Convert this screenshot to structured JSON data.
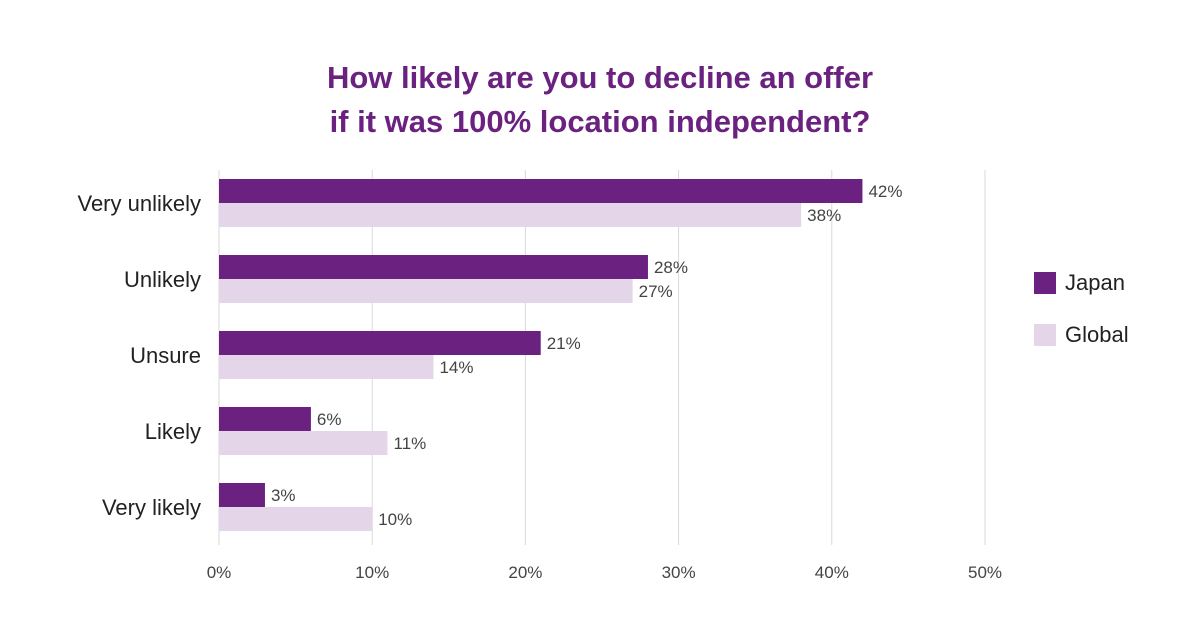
{
  "title_line1": "How likely are you to decline an offer",
  "title_line2": "if it was 100% location independent?",
  "chart_data": {
    "type": "bar",
    "orientation": "horizontal",
    "categories": [
      "Very unlikely",
      "Unlikely",
      "Unsure",
      "Likely",
      "Very likely"
    ],
    "series": [
      {
        "name": "Japan",
        "values": [
          42,
          28,
          21,
          6,
          3
        ],
        "color": "#6b2180",
        "labels": [
          "42%",
          "28%",
          "21%",
          "6%",
          "3%"
        ]
      },
      {
        "name": "Global",
        "values": [
          38,
          27,
          14,
          11,
          10
        ],
        "color": "#e4d6e8",
        "labels": [
          "38%",
          "27%",
          "14%",
          "11%",
          "10%"
        ]
      }
    ],
    "xlim": [
      0,
      50
    ],
    "ticks": [
      0,
      10,
      20,
      30,
      40,
      50
    ],
    "tick_labels": [
      "0%",
      "10%",
      "20%",
      "30%",
      "40%",
      "50%"
    ],
    "grid": true,
    "legend_position": "right"
  }
}
